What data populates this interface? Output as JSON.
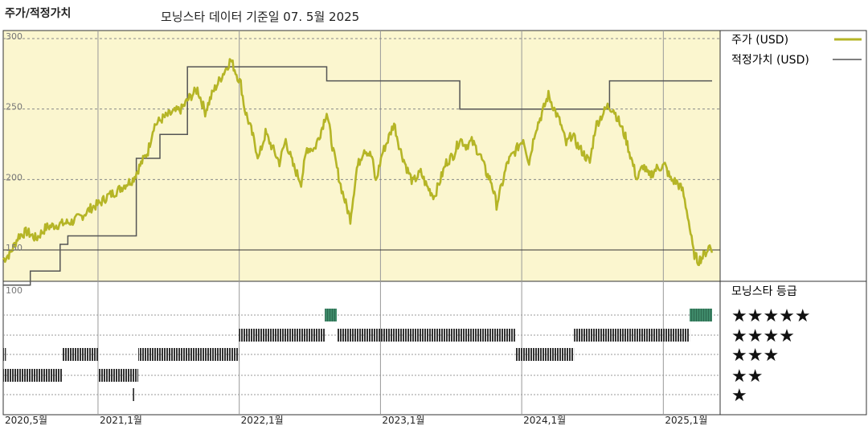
{
  "header": {
    "title": "주가/적정가치",
    "data_basis": "모닝스타 데이터 기준일 07. 5월 2025"
  },
  "legend": {
    "price_label": "주가 (USD)",
    "fair_value_label": "적정가치 (USD)",
    "rating_title": "모닝스타 등급"
  },
  "colors": {
    "price": "#b5b526",
    "fair_value": "#555555",
    "upper_panel_bg": "#fbf6cf",
    "rating_bar": "#333333",
    "rating_bar_highlight": "#3f8a6a"
  },
  "chart_data": [
    {
      "type": "line",
      "title": "주가/적정가치",
      "x_axis": "date",
      "xlim": [
        "2020-05-01",
        "2025-05-07"
      ],
      "ylim": [
        100,
        300
      ],
      "y_ticks": [
        {
          "value": 300,
          "label": "300"
        },
        {
          "value": 250,
          "label": "250"
        },
        {
          "value": 200,
          "label": "200"
        },
        {
          "value": 150,
          "label": "150"
        }
      ],
      "reference_line": 150,
      "x_tick_labels": [
        {
          "date": "2020-05-01",
          "label": "2020,5월"
        },
        {
          "date": "2021-01-01",
          "label": "2021,1월"
        },
        {
          "date": "2022-01-01",
          "label": "2022,1월"
        },
        {
          "date": "2023-01-01",
          "label": "2023,1월"
        },
        {
          "date": "2024-01-01",
          "label": "2024,1월"
        },
        {
          "date": "2025-01-01",
          "label": "2025,1월"
        }
      ],
      "series": [
        {
          "name": "주가 (USD)",
          "points": [
            [
              "2020-05-01",
              143
            ],
            [
              "2020-05-20",
              148
            ],
            [
              "2020-06-10",
              160
            ],
            [
              "2020-07-01",
              163
            ],
            [
              "2020-07-25",
              158
            ],
            [
              "2020-08-20",
              166
            ],
            [
              "2020-09-20",
              168
            ],
            [
              "2020-10-25",
              170
            ],
            [
              "2020-11-20",
              174
            ],
            [
              "2020-12-15",
              180
            ],
            [
              "2021-01-05",
              183
            ],
            [
              "2021-01-25",
              188
            ],
            [
              "2021-02-20",
              192
            ],
            [
              "2021-03-15",
              197
            ],
            [
              "2021-04-01",
              200
            ],
            [
              "2021-04-20",
              210
            ],
            [
              "2021-05-10",
              220
            ],
            [
              "2021-05-25",
              238
            ],
            [
              "2021-06-15",
              243
            ],
            [
              "2021-07-10",
              247
            ],
            [
              "2021-08-05",
              250
            ],
            [
              "2021-08-25",
              258
            ],
            [
              "2021-09-15",
              264
            ],
            [
              "2021-10-05",
              248
            ],
            [
              "2021-10-25",
              262
            ],
            [
              "2021-11-20",
              275
            ],
            [
              "2021-12-10",
              285
            ],
            [
              "2021-12-25",
              275
            ],
            [
              "2022-01-05",
              268
            ],
            [
              "2022-01-15",
              250
            ],
            [
              "2022-02-01",
              235
            ],
            [
              "2022-02-20",
              215
            ],
            [
              "2022-03-10",
              233
            ],
            [
              "2022-03-25",
              224
            ],
            [
              "2022-04-15",
              212
            ],
            [
              "2022-05-01",
              228
            ],
            [
              "2022-05-20",
              210
            ],
            [
              "2022-06-10",
              198
            ],
            [
              "2022-06-25",
              222
            ],
            [
              "2022-07-15",
              222
            ],
            [
              "2022-08-01",
              235
            ],
            [
              "2022-08-15",
              248
            ],
            [
              "2022-09-01",
              220
            ],
            [
              "2022-09-20",
              196
            ],
            [
              "2022-10-01",
              185
            ],
            [
              "2022-10-15",
              172
            ],
            [
              "2022-11-01",
              208
            ],
            [
              "2022-11-20",
              222
            ],
            [
              "2022-12-10",
              216
            ],
            [
              "2022-12-20",
              198
            ],
            [
              "2023-01-05",
              218
            ],
            [
              "2023-01-20",
              228
            ],
            [
              "2023-02-05",
              240
            ],
            [
              "2023-02-20",
              222
            ],
            [
              "2023-03-10",
              208
            ],
            [
              "2023-03-25",
              198
            ],
            [
              "2023-04-15",
              205
            ],
            [
              "2023-05-01",
              195
            ],
            [
              "2023-05-20",
              188
            ],
            [
              "2023-06-05",
              200
            ],
            [
              "2023-06-20",
              212
            ],
            [
              "2023-07-10",
              218
            ],
            [
              "2023-07-25",
              229
            ],
            [
              "2023-08-10",
              224
            ],
            [
              "2023-08-25",
              227
            ],
            [
              "2023-09-15",
              218
            ],
            [
              "2023-10-01",
              205
            ],
            [
              "2023-10-15",
              198
            ],
            [
              "2023-10-28",
              182
            ],
            [
              "2023-11-10",
              195
            ],
            [
              "2023-11-25",
              212
            ],
            [
              "2023-12-15",
              220
            ],
            [
              "2024-01-05",
              229
            ],
            [
              "2024-01-20",
              212
            ],
            [
              "2024-02-05",
              235
            ],
            [
              "2024-02-20",
              245
            ],
            [
              "2024-03-10",
              260
            ],
            [
              "2024-03-25",
              250
            ],
            [
              "2024-04-10",
              240
            ],
            [
              "2024-04-25",
              225
            ],
            [
              "2024-05-10",
              232
            ],
            [
              "2024-05-25",
              224
            ],
            [
              "2024-06-10",
              218
            ],
            [
              "2024-06-25",
              212
            ],
            [
              "2024-07-10",
              238
            ],
            [
              "2024-07-25",
              245
            ],
            [
              "2024-08-10",
              252
            ],
            [
              "2024-08-25",
              250
            ],
            [
              "2024-09-10",
              240
            ],
            [
              "2024-09-25",
              230
            ],
            [
              "2024-10-10",
              215
            ],
            [
              "2024-10-25",
              200
            ],
            [
              "2024-11-10",
              210
            ],
            [
              "2024-11-25",
              202
            ],
            [
              "2024-12-15",
              208
            ],
            [
              "2025-01-05",
              210
            ],
            [
              "2025-01-20",
              200
            ],
            [
              "2025-02-05",
              198
            ],
            [
              "2025-02-20",
              192
            ],
            [
              "2025-03-05",
              175
            ],
            [
              "2025-03-20",
              148
            ],
            [
              "2025-04-01",
              142
            ],
            [
              "2025-04-15",
              146
            ],
            [
              "2025-05-01",
              153
            ],
            [
              "2025-05-07",
              148
            ]
          ]
        },
        {
          "name": "적정가치 (USD)",
          "step": true,
          "points": [
            [
              "2020-05-01",
              125
            ],
            [
              "2020-07-10",
              125
            ],
            [
              "2020-07-10",
              135
            ],
            [
              "2020-09-25",
              135
            ],
            [
              "2020-09-25",
              154
            ],
            [
              "2020-10-15",
              154
            ],
            [
              "2020-10-15",
              160
            ],
            [
              "2021-04-10",
              160
            ],
            [
              "2021-04-10",
              215
            ],
            [
              "2021-06-10",
              215
            ],
            [
              "2021-06-10",
              232
            ],
            [
              "2021-08-20",
              232
            ],
            [
              "2021-08-20",
              280
            ],
            [
              "2022-08-15",
              280
            ],
            [
              "2022-08-15",
              270
            ],
            [
              "2023-07-25",
              270
            ],
            [
              "2023-07-25",
              250
            ],
            [
              "2024-08-15",
              250
            ],
            [
              "2024-08-15",
              270
            ],
            [
              "2025-05-07",
              270
            ]
          ]
        }
      ]
    },
    {
      "type": "bar",
      "title": "모닝스타 등급",
      "y_tick_label": "100",
      "levels": [
        {
          "stars": 5,
          "label": "★★★★★"
        },
        {
          "stars": 4,
          "label": "★★★★"
        },
        {
          "stars": 3,
          "label": "★★★"
        },
        {
          "stars": 2,
          "label": "★★"
        },
        {
          "stars": 1,
          "label": "★"
        }
      ],
      "rating_periods": [
        {
          "start": "2020-05-01",
          "end": "2020-05-08",
          "stars": 3
        },
        {
          "start": "2020-05-01",
          "end": "2020-10-01",
          "stars": 2
        },
        {
          "start": "2020-10-01",
          "end": "2021-01-01",
          "stars": 3
        },
        {
          "start": "2021-01-01",
          "end": "2021-04-15",
          "stars": 2
        },
        {
          "start": "2021-04-01",
          "end": "2021-04-05",
          "stars": 1
        },
        {
          "start": "2021-04-15",
          "end": "2021-08-20",
          "stars": 3
        },
        {
          "start": "2021-08-20",
          "end": "2021-12-31",
          "stars": 3
        },
        {
          "start": "2021-12-31",
          "end": "2022-08-10",
          "stars": 4
        },
        {
          "start": "2022-08-10",
          "end": "2022-09-10",
          "stars": 5
        },
        {
          "start": "2022-09-10",
          "end": "2023-12-15",
          "stars": 4
        },
        {
          "start": "2023-12-15",
          "end": "2024-01-15",
          "stars": 3
        },
        {
          "start": "2024-01-15",
          "end": "2024-05-15",
          "stars": 3
        },
        {
          "start": "2024-05-15",
          "end": "2024-10-15",
          "stars": 4
        },
        {
          "start": "2024-10-15",
          "end": "2025-03-10",
          "stars": 4
        },
        {
          "start": "2025-03-10",
          "end": "2025-05-07",
          "stars": 5
        }
      ]
    }
  ]
}
